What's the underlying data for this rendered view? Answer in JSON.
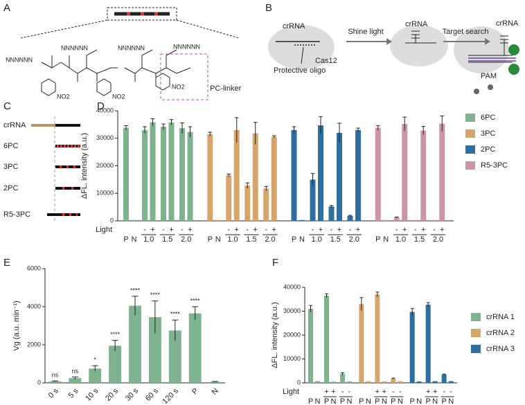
{
  "panel_labels": [
    "A",
    "B",
    "C",
    "D",
    "E",
    "F"
  ],
  "diagram_a": {
    "strands": [
      "NNNNNN",
      "NNNNNN",
      "NNNNNN",
      "NNNNNN"
    ],
    "nitro": [
      "NO2",
      "NO2",
      "NO2"
    ],
    "linker_label": "PC-linker"
  },
  "diagram_b": {
    "crrna": [
      "crRNA",
      "crRNA",
      "crRNA"
    ],
    "cas": "Cas12",
    "oligo": "Protective oligo",
    "step1": "Shine light",
    "step2": "Target search",
    "pam": "PAM"
  },
  "diagram_c": {
    "rows": [
      "crRNA",
      "6PC",
      "3PC",
      "2PC",
      "R5-3PC"
    ]
  },
  "chart_data": [
    {
      "type": "bar",
      "ylabel": "ΔFL. intensity (a.u.)",
      "ylim": [
        0,
        40000
      ],
      "yticks": [
        0,
        10000,
        20000,
        30000,
        40000
      ],
      "x_labels": [
        "P",
        "N",
        null,
        null,
        null,
        null,
        null,
        null
      ],
      "light_marks": [
        null,
        null,
        "-",
        "+",
        "-",
        "+",
        "-",
        "+"
      ],
      "conditions": [
        "1.0",
        "1.5",
        "2.0"
      ],
      "light_label": "Light",
      "legend": "right",
      "series": [
        {
          "name": "6PC",
          "color": "#7fb28e",
          "values": [
            33800,
            300,
            33000,
            35800,
            34200,
            35800,
            33700,
            32300
          ],
          "errors": [
            800,
            0,
            1200,
            1300,
            1000,
            1000,
            1900,
            1900
          ]
        },
        {
          "name": "3PC",
          "color": "#d5a56c",
          "values": [
            31500,
            300,
            16500,
            33000,
            12800,
            31800,
            11700,
            30500
          ],
          "errors": [
            700,
            0,
            500,
            4500,
            1000,
            4000,
            800,
            400
          ]
        },
        {
          "name": "2PC",
          "color": "#2f6f9f",
          "values": [
            33000,
            300,
            15000,
            34700,
            5200,
            32000,
            1800,
            33000
          ],
          "errors": [
            1200,
            0,
            2200,
            3200,
            400,
            3500,
            200,
            700
          ]
        },
        {
          "name": "R5-3PC",
          "color": "#c995a7",
          "values": [
            33800,
            300,
            1200,
            35200,
            300,
            32800,
            300,
            35300
          ],
          "errors": [
            800,
            0,
            200,
            2500,
            0,
            1500,
            0,
            2800
          ]
        }
      ]
    },
    {
      "type": "bar",
      "ylabel": "Vg (a.u. min⁻¹)",
      "ylim": [
        0,
        6000
      ],
      "yticks": [
        0,
        2000,
        4000,
        6000
      ],
      "color": "#7fb28e",
      "categories": [
        "0 s",
        "5 s",
        "10 s",
        "20 s",
        "30 s",
        "60 s",
        "120 s",
        "P",
        "N"
      ],
      "values": [
        80,
        250,
        750,
        1950,
        4050,
        3450,
        2750,
        3650,
        50
      ],
      "errors": [
        20,
        60,
        150,
        280,
        500,
        850,
        550,
        350,
        20
      ],
      "annotations": [
        "ns",
        "ns",
        "*",
        "****",
        "****",
        "****",
        "****",
        "****",
        null
      ]
    },
    {
      "type": "bar",
      "ylabel": "ΔFL. intensity (a.u.)",
      "ylim": [
        0,
        40000
      ],
      "yticks": [
        0,
        10000,
        20000,
        30000,
        40000
      ],
      "x_labels": [
        "P",
        "N",
        "P",
        "N",
        "P",
        "N"
      ],
      "light_marks": [
        null,
        null,
        "+",
        "+",
        "-",
        "-"
      ],
      "light_label": "Light",
      "legend": "right",
      "series": [
        {
          "name": "crRNA 1",
          "color": "#7fb28e",
          "values": [
            31000,
            700,
            36500,
            500,
            3700,
            600
          ],
          "errors": [
            1400,
            0,
            800,
            0,
            500,
            0
          ]
        },
        {
          "name": "crRNA 2",
          "color": "#d5a56c",
          "values": [
            33000,
            700,
            37000,
            600,
            1800,
            700
          ],
          "errors": [
            2700,
            0,
            1000,
            0,
            200,
            0
          ]
        },
        {
          "name": "crRNA 3",
          "color": "#2f6f9f",
          "values": [
            29700,
            600,
            32700,
            700,
            3500,
            700
          ],
          "errors": [
            1400,
            0,
            900,
            0,
            200,
            0
          ]
        }
      ]
    }
  ]
}
